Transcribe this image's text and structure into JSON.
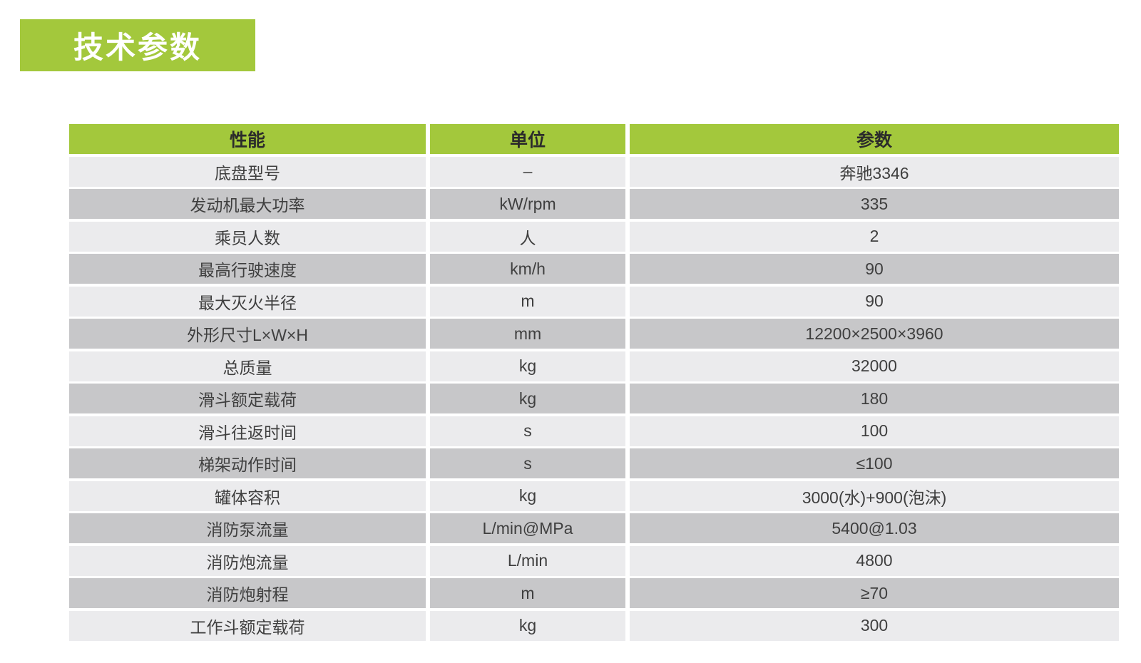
{
  "section": {
    "title": "技术参数"
  },
  "colors": {
    "accent_green": "#a3c83c",
    "row_light": "#ebebed",
    "row_dark": "#c7c7c9",
    "cell_text": "#3f3f3f",
    "header_text": "#2b2b2b",
    "title_text": "#ffffff"
  },
  "table": {
    "headers": [
      "性能",
      "单位",
      "参数"
    ],
    "rows": [
      {
        "name": "底盘型号",
        "unit": "–",
        "value": "奔驰3346"
      },
      {
        "name": "发动机最大功率",
        "unit": "kW/rpm",
        "value": "335"
      },
      {
        "name": "乘员人数",
        "unit": "人",
        "value": "2"
      },
      {
        "name": "最高行驶速度",
        "unit": "km/h",
        "value": "90"
      },
      {
        "name": "最大灭火半径",
        "unit": "m",
        "value": "90"
      },
      {
        "name": "外形尺寸L×W×H",
        "unit": "mm",
        "value": "12200×2500×3960"
      },
      {
        "name": "总质量",
        "unit": "kg",
        "value": "32000"
      },
      {
        "name": "滑斗额定载荷",
        "unit": "kg",
        "value": "180"
      },
      {
        "name": "滑斗往返时间",
        "unit": "s",
        "value": "100"
      },
      {
        "name": "梯架动作时间",
        "unit": "s",
        "value": "≤100"
      },
      {
        "name": "罐体容积",
        "unit": "kg",
        "value": "3000(水)+900(泡沫)"
      },
      {
        "name": "消防泵流量",
        "unit": "L/min@MPa",
        "value": "5400@1.03"
      },
      {
        "name": "消防炮流量",
        "unit": "L/min",
        "value": "4800"
      },
      {
        "name": "消防炮射程",
        "unit": "m",
        "value": "≥70"
      },
      {
        "name": "工作斗额定载荷",
        "unit": "kg",
        "value": "300"
      }
    ]
  }
}
